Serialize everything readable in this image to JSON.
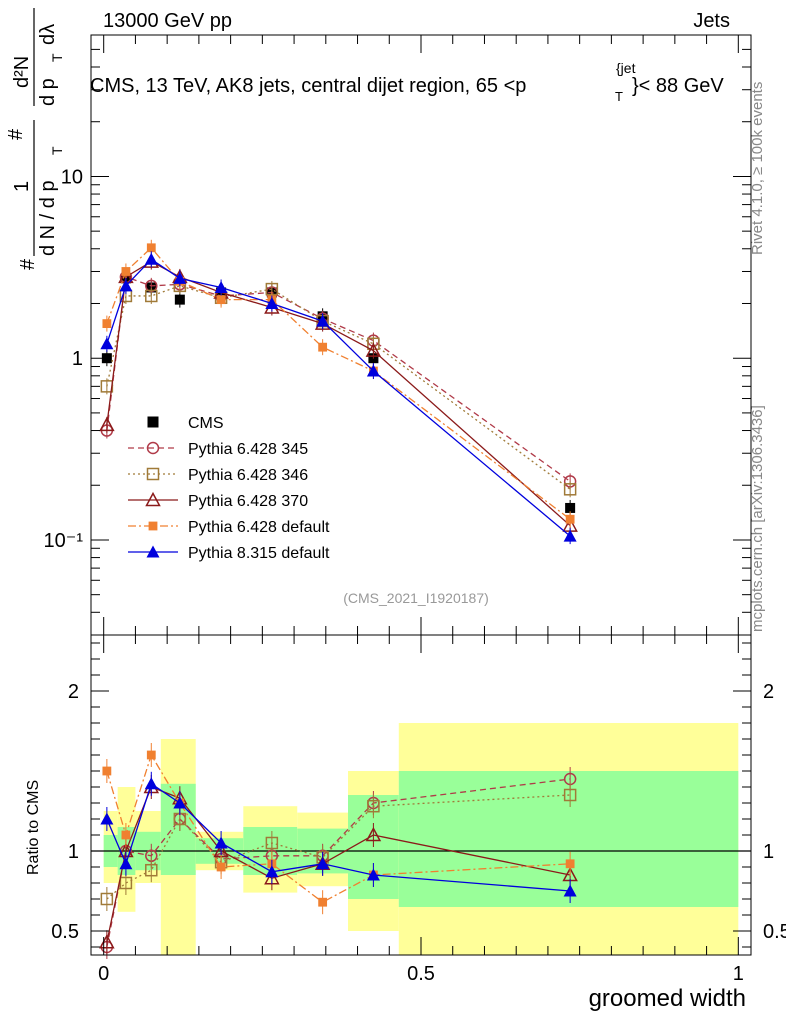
{
  "header": {
    "left": "13000 GeV pp",
    "right": "Jets",
    "plot_title_pre": "CMS, 13 TeV, AK8 jets, central dijet region, 65 <p",
    "plot_title_sup": "{jet",
    "plot_title_sub": "T",
    "plot_title_post": "}< 88 GeV"
  },
  "side_labels": {
    "rivet": "Rivet 4.1.0, ≥ 100k events",
    "mcplots": "mcplots.cern.ch [arXiv:1306.3436]"
  },
  "analysis_tag": "(CMS_2021_I1920187)",
  "y_label_top": {
    "hash1": "#",
    "one": "1",
    "dN": "d N / d p",
    "T1": "T",
    "hash2": "#",
    "d2N": "d²N",
    "dpT": "d p",
    "T2": "T",
    "dlambda": "dλ"
  },
  "chart_data": {
    "type": "scatter",
    "xlabel": "groomed width",
    "xlim": [
      -0.02,
      1.02
    ],
    "x_ticks": [
      "0",
      "0.5",
      "1"
    ],
    "top_panel": {
      "yscale": "log",
      "ylim": [
        0.03,
        60
      ],
      "y_ticks": [
        "10⁻¹",
        "1",
        "10"
      ],
      "x": [
        0.005,
        0.035,
        0.075,
        0.12,
        0.185,
        0.265,
        0.345,
        0.425,
        0.735
      ],
      "series": [
        {
          "name": "CMS",
          "style": "square-filled",
          "color": "#000000",
          "line": "none",
          "values": [
            1.0,
            2.75,
            2.45,
            2.1,
            2.3,
            2.3,
            1.7,
            1.0,
            0.15
          ]
        },
        {
          "name": "Pythia 6.428 345",
          "style": "circle-open",
          "color": "#b03a48",
          "line": "dashed",
          "values": [
            0.4,
            2.8,
            2.5,
            2.55,
            2.2,
            2.3,
            1.65,
            1.25,
            0.21
          ]
        },
        {
          "name": "Pythia 6.428 346",
          "style": "square-open",
          "color": "#a07a38",
          "line": "dotted",
          "values": [
            0.7,
            2.2,
            2.2,
            2.5,
            2.15,
            2.4,
            1.6,
            1.2,
            0.19
          ]
        },
        {
          "name": "Pythia 6.428 370",
          "style": "triangle-open",
          "color": "#8b1a1a",
          "line": "solid",
          "values": [
            0.43,
            2.8,
            3.4,
            2.8,
            2.3,
            1.9,
            1.55,
            1.1,
            0.12
          ]
        },
        {
          "name": "Pythia 6.428 default",
          "style": "square-filled-small",
          "color": "#f08030",
          "line": "dashdot",
          "values": [
            1.55,
            3.0,
            4.05,
            2.65,
            2.1,
            2.1,
            1.15,
            0.85,
            0.13
          ]
        },
        {
          "name": "Pythia 8.315 default",
          "style": "triangle-filled",
          "color": "#0000dd",
          "line": "solid",
          "values": [
            1.2,
            2.5,
            3.5,
            2.75,
            2.45,
            2.0,
            1.6,
            0.85,
            0.105
          ]
        }
      ]
    },
    "ratio_panel": {
      "ylabel": "Ratio to CMS",
      "ylim": [
        0.35,
        2.35
      ],
      "y_ticks": [
        "0.5",
        "1",
        "2"
      ],
      "bins": [
        {
          "lo": 0.0,
          "hi": 0.022,
          "stat": [
            0.9,
            1.1
          ],
          "total": [
            0.8,
            1.25
          ]
        },
        {
          "lo": 0.022,
          "hi": 0.05,
          "stat": [
            0.85,
            1.15
          ],
          "total": [
            0.62,
            1.4
          ]
        },
        {
          "lo": 0.05,
          "hi": 0.09,
          "stat": [
            0.88,
            1.12
          ],
          "total": [
            0.8,
            1.25
          ]
        },
        {
          "lo": 0.09,
          "hi": 0.145,
          "stat": [
            0.85,
            1.42
          ],
          "total": [
            0.35,
            1.7
          ]
        },
        {
          "lo": 0.145,
          "hi": 0.22,
          "stat": [
            0.92,
            1.08
          ],
          "total": [
            0.88,
            1.12
          ]
        },
        {
          "lo": 0.22,
          "hi": 0.305,
          "stat": [
            0.85,
            1.15
          ],
          "total": [
            0.74,
            1.28
          ]
        },
        {
          "lo": 0.305,
          "hi": 0.385,
          "stat": [
            0.86,
            1.14
          ],
          "total": [
            0.78,
            1.24
          ]
        },
        {
          "lo": 0.385,
          "hi": 0.465,
          "stat": [
            0.7,
            1.35
          ],
          "total": [
            0.5,
            1.5
          ]
        },
        {
          "lo": 0.465,
          "hi": 1.0,
          "stat": [
            0.65,
            1.5
          ],
          "total": [
            0.35,
            1.8
          ]
        }
      ],
      "series": [
        {
          "name": "Pythia 6.428 345",
          "values": [
            0.4,
            1.0,
            0.97,
            1.2,
            0.95,
            0.97,
            0.97,
            1.3,
            1.45
          ]
        },
        {
          "name": "Pythia 6.428 346",
          "values": [
            0.7,
            0.8,
            0.88,
            1.2,
            0.93,
            1.05,
            0.96,
            1.28,
            1.35
          ]
        },
        {
          "name": "Pythia 6.428 370",
          "values": [
            0.43,
            1.0,
            1.4,
            1.33,
            1.0,
            0.83,
            0.92,
            1.1,
            0.85
          ]
        },
        {
          "name": "Pythia 6.428 default",
          "values": [
            1.5,
            1.1,
            1.6,
            1.3,
            0.9,
            0.92,
            0.68,
            0.85,
            0.92
          ]
        },
        {
          "name": "Pythia 8.315 default",
          "values": [
            1.2,
            0.92,
            1.42,
            1.3,
            1.05,
            0.87,
            0.92,
            0.85,
            0.75
          ]
        }
      ]
    }
  }
}
